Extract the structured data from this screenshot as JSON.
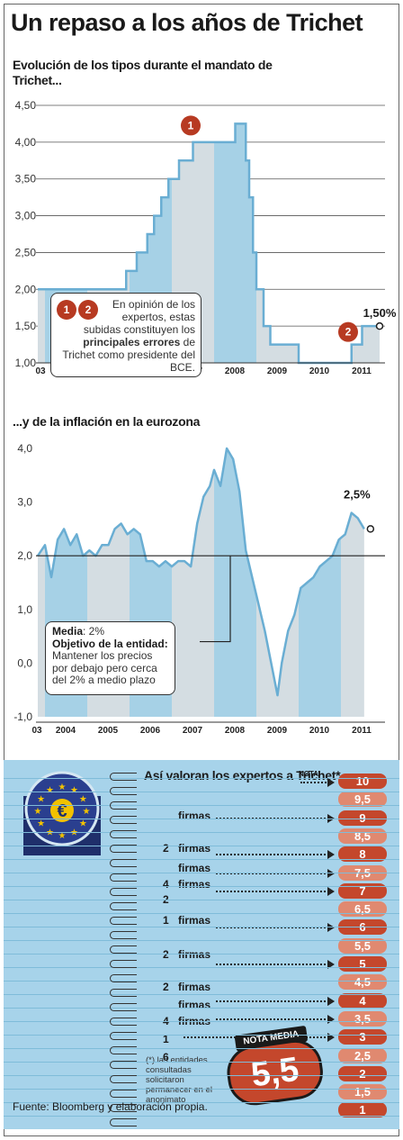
{
  "title": "Un repaso a los años de Trichet",
  "colors": {
    "band_blue": "#a6d1e6",
    "band_gray": "#d4dde2",
    "line": "#6aaed3",
    "accent": "#b73a22"
  },
  "rates": {
    "subtitle": "Evolución de los tipos durante el mandato de Trichet...",
    "chart_data": {
      "type": "area",
      "x": [
        2003.83,
        2005.92,
        2006.17,
        2006.42,
        2006.58,
        2006.75,
        2006.92,
        2007.17,
        2007.5,
        2008.5,
        2008.75,
        2008.83,
        2008.92,
        2009.0,
        2009.17,
        2009.33,
        2010.0,
        2011.0,
        2011.25,
        2011.5,
        2011.83
      ],
      "values": [
        2.0,
        2.25,
        2.5,
        2.75,
        3.0,
        3.25,
        3.5,
        3.75,
        4.0,
        4.25,
        3.75,
        3.25,
        2.5,
        2.0,
        1.5,
        1.25,
        1.0,
        1.0,
        1.25,
        1.5,
        1.5
      ],
      "step": true,
      "ylim": [
        1.0,
        4.5
      ],
      "yticks": [
        "4,50",
        "4,00",
        "3,50",
        "3,00",
        "2,50",
        "2,00",
        "1,50",
        "1,00"
      ],
      "xticks": [
        "03",
        "2004",
        "2005",
        "2006",
        "2007",
        "2008",
        "2009",
        "2010",
        "2011"
      ],
      "end_label": "1,50%",
      "grid": false
    },
    "badge_peak": "1",
    "badge_end": "2",
    "note_badges": [
      "1",
      "2"
    ],
    "note_text_1": "En opinión de los expertos, estas subidas constituyen los ",
    "note_bold": "principales errores",
    "note_text_2": " de Trichet como presidente del BCE."
  },
  "inflation": {
    "subtitle": "...y de la inflación en la eurozona",
    "chart_data": {
      "type": "line",
      "x": [
        2003.83,
        2004.0,
        2004.15,
        2004.3,
        2004.45,
        2004.6,
        2004.75,
        2004.9,
        2005.05,
        2005.2,
        2005.35,
        2005.5,
        2005.65,
        2005.8,
        2005.95,
        2006.1,
        2006.25,
        2006.4,
        2006.55,
        2006.7,
        2006.85,
        2007.0,
        2007.15,
        2007.3,
        2007.45,
        2007.6,
        2007.75,
        2007.9,
        2008.0,
        2008.15,
        2008.3,
        2008.45,
        2008.6,
        2008.75,
        2008.9,
        2009.05,
        2009.2,
        2009.35,
        2009.5,
        2009.6,
        2009.75,
        2009.9,
        2010.05,
        2010.2,
        2010.35,
        2010.5,
        2010.65,
        2010.8,
        2010.95,
        2011.1,
        2011.25,
        2011.4,
        2011.55
      ],
      "values": [
        2.0,
        2.2,
        1.6,
        2.3,
        2.5,
        2.2,
        2.4,
        2.0,
        2.1,
        2.0,
        2.2,
        2.2,
        2.5,
        2.6,
        2.4,
        2.5,
        2.4,
        1.9,
        1.9,
        1.8,
        1.9,
        1.8,
        1.9,
        1.9,
        1.8,
        2.6,
        3.1,
        3.3,
        3.6,
        3.3,
        4.0,
        3.8,
        3.2,
        2.1,
        1.6,
        1.1,
        0.6,
        0.0,
        -0.6,
        0.0,
        0.6,
        0.9,
        1.4,
        1.5,
        1.6,
        1.8,
        1.9,
        2.0,
        2.3,
        2.4,
        2.8,
        2.7,
        2.5
      ],
      "ylim": [
        -1.0,
        4.0
      ],
      "yticks": [
        "4,0",
        "3,0",
        "2,0",
        "1,0",
        "0,0",
        "-1,0"
      ],
      "xticks": [
        "03",
        "2004",
        "2005",
        "2006",
        "2007",
        "2008",
        "2009",
        "2010",
        "2011"
      ],
      "reference_line": 2.0,
      "end_label": "2,5%",
      "grid": false
    },
    "note_media_label": "Media",
    "note_media_value": ": 2%",
    "note_objective_label": "Objetivo de la entidad",
    "note_objective_text": "Mantener los precios por debajo pero cerca del 2% a medio plazo"
  },
  "ratings": {
    "title": "Así valoran los expertos a Trichet*",
    "nota_label": "NOTA",
    "grades": [
      "10",
      "9,5",
      "9",
      "8,5",
      "8",
      "7,5",
      "7",
      "6,5",
      "6",
      "5,5",
      "5",
      "4,5",
      "4",
      "3,5",
      "3",
      "2,5",
      "2",
      "1,5",
      "1"
    ],
    "rows": [
      {
        "count": "",
        "word": "firmas"
      },
      {
        "count": "2",
        "word": "firmas"
      },
      {
        "count": "",
        "word": "firmas"
      },
      {
        "count": "4",
        "word": "firmas"
      },
      {
        "count": "2",
        "word": ""
      },
      {
        "count": "1",
        "word": "firmas"
      },
      {
        "count": "2",
        "word": "firmas"
      },
      {
        "count": "2",
        "word": "firmas"
      },
      {
        "count": "",
        "word": "firmas"
      },
      {
        "count": "4",
        "word": "firmas"
      },
      {
        "count": "1",
        "word": ""
      },
      {
        "count": "6",
        "word": ""
      }
    ],
    "footnote": "(*) las entidades consultadas solicitaron permanecer en el anonimato",
    "average_label": "NOTA MEDIA",
    "average_value": "5,5"
  },
  "source": "Fuente: Bloomberg y elaboración propia."
}
